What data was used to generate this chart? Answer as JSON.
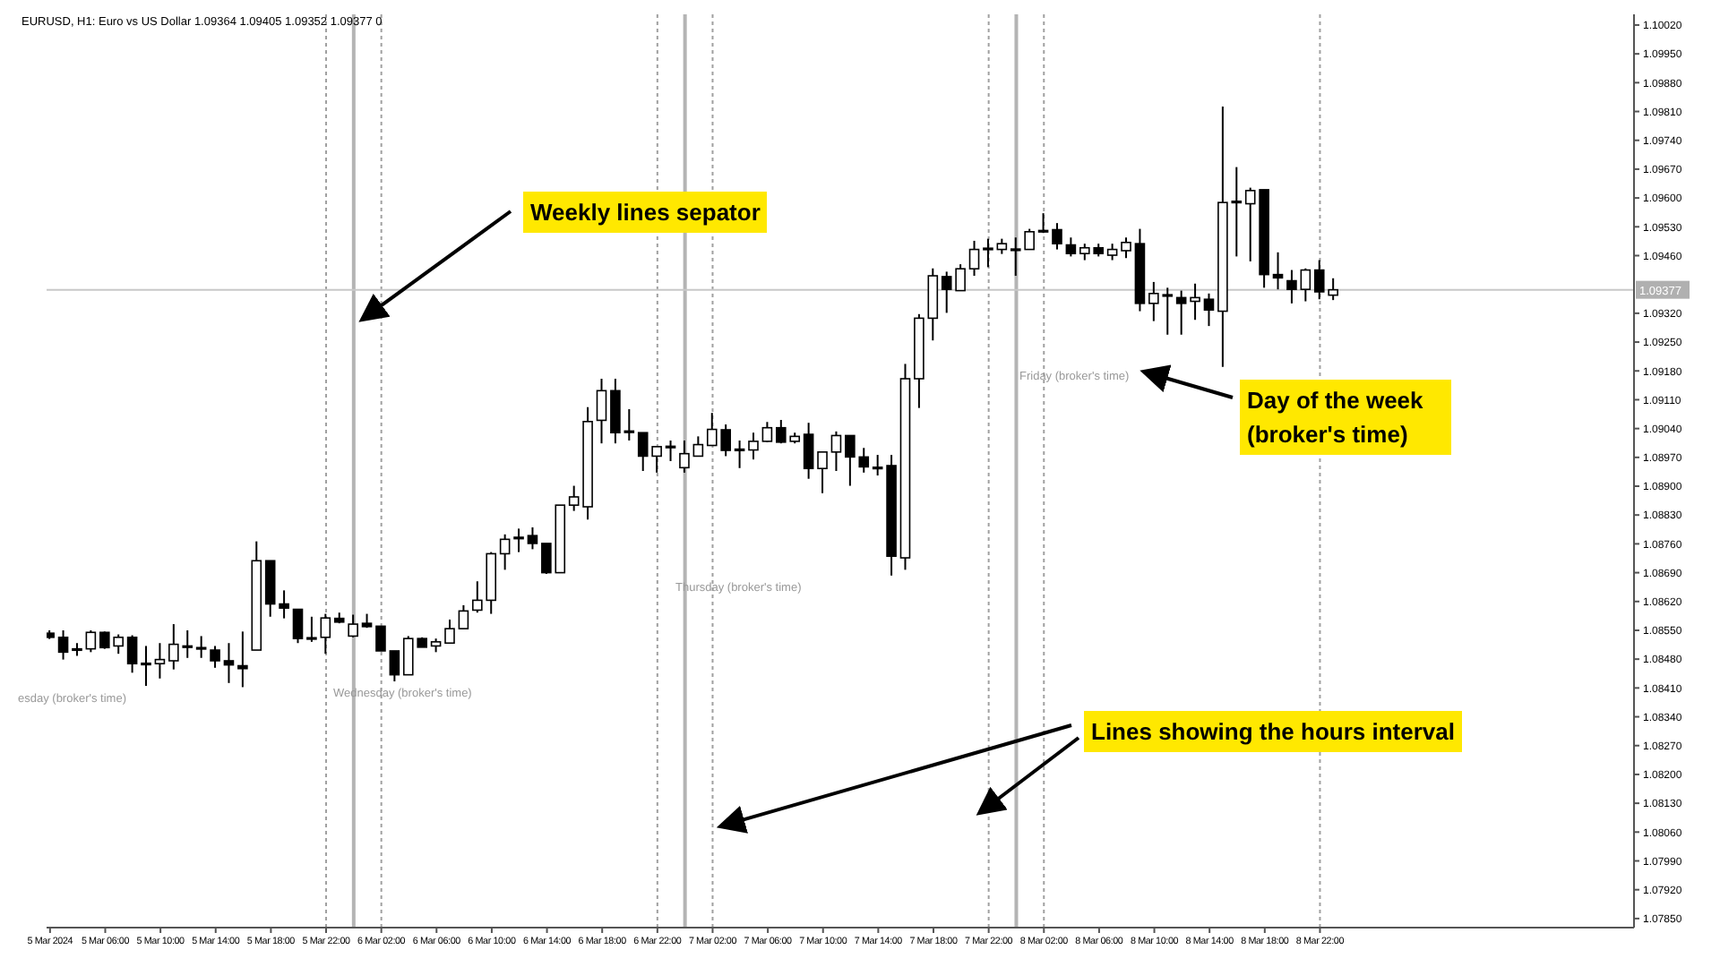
{
  "chart_data": {
    "type": "candlestick",
    "title": "EURUSD, H1: Euro vs US Dollar 1.09364 1.09405 1.09352 1.09377 0",
    "color": "#000000",
    "x": [
      "2024-03-05T02:00",
      "2024-03-05T03:00",
      "2024-03-05T04:00",
      "2024-03-05T05:00",
      "2024-03-05T06:00",
      "2024-03-05T07:00",
      "2024-03-05T08:00",
      "2024-03-05T09:00",
      "2024-03-05T10:00",
      "2024-03-05T11:00",
      "2024-03-05T12:00",
      "2024-03-05T13:00",
      "2024-03-05T14:00",
      "2024-03-05T15:00",
      "2024-03-05T16:00",
      "2024-03-05T17:00",
      "2024-03-05T18:00",
      "2024-03-05T19:00",
      "2024-03-05T20:00",
      "2024-03-05T21:00",
      "2024-03-05T22:00",
      "2024-03-05T23:00",
      "2024-03-06T00:00",
      "2024-03-06T01:00",
      "2024-03-06T02:00",
      "2024-03-06T03:00",
      "2024-03-06T04:00",
      "2024-03-06T05:00",
      "2024-03-06T06:00",
      "2024-03-06T07:00",
      "2024-03-06T08:00",
      "2024-03-06T09:00",
      "2024-03-06T10:00",
      "2024-03-06T11:00",
      "2024-03-06T12:00",
      "2024-03-06T13:00",
      "2024-03-06T14:00",
      "2024-03-06T15:00",
      "2024-03-06T16:00",
      "2024-03-06T17:00",
      "2024-03-06T18:00",
      "2024-03-06T19:00",
      "2024-03-06T20:00",
      "2024-03-06T21:00",
      "2024-03-06T22:00",
      "2024-03-06T23:00",
      "2024-03-07T00:00",
      "2024-03-07T01:00",
      "2024-03-07T02:00",
      "2024-03-07T03:00",
      "2024-03-07T04:00",
      "2024-03-07T05:00",
      "2024-03-07T06:00",
      "2024-03-07T07:00",
      "2024-03-07T08:00",
      "2024-03-07T09:00",
      "2024-03-07T10:00",
      "2024-03-07T11:00",
      "2024-03-07T12:00",
      "2024-03-07T13:00",
      "2024-03-07T14:00",
      "2024-03-07T15:00",
      "2024-03-07T16:00",
      "2024-03-07T17:00",
      "2024-03-07T18:00",
      "2024-03-07T19:00",
      "2024-03-07T20:00",
      "2024-03-07T21:00",
      "2024-03-07T22:00",
      "2024-03-07T23:00",
      "2024-03-08T00:00",
      "2024-03-08T01:00",
      "2024-03-08T02:00",
      "2024-03-08T03:00",
      "2024-03-08T04:00",
      "2024-03-08T05:00",
      "2024-03-08T06:00",
      "2024-03-08T07:00",
      "2024-03-08T08:00",
      "2024-03-08T09:00",
      "2024-03-08T10:00",
      "2024-03-08T11:00",
      "2024-03-08T12:00",
      "2024-03-08T13:00",
      "2024-03-08T14:00",
      "2024-03-08T15:00",
      "2024-03-08T16:00",
      "2024-03-08T17:00",
      "2024-03-08T18:00",
      "2024-03-08T19:00",
      "2024-03-08T20:00",
      "2024-03-08T21:00",
      "2024-03-08T22:00",
      "2024-03-08T23:00"
    ],
    "ohlc": [
      [
        1.08543,
        1.0855,
        1.08529,
        1.08533
      ],
      [
        1.08533,
        1.0855,
        1.08479,
        1.08497
      ],
      [
        1.08502,
        1.08519,
        1.08488,
        1.08505
      ],
      [
        1.08505,
        1.0855,
        1.08497,
        1.08545
      ],
      [
        1.08545,
        1.08547,
        1.08505,
        1.08508
      ],
      [
        1.08512,
        1.0854,
        1.08493,
        1.08533
      ],
      [
        1.08533,
        1.08538,
        1.08447,
        1.08469
      ],
      [
        1.08469,
        1.08512,
        1.08415,
        1.0847
      ],
      [
        1.08469,
        1.08519,
        1.08433,
        1.08479
      ],
      [
        1.08476,
        1.08565,
        1.08455,
        1.08516
      ],
      [
        1.0851,
        1.0855,
        1.08483,
        1.08512
      ],
      [
        1.08508,
        1.08536,
        1.08483,
        1.08505
      ],
      [
        1.08502,
        1.08512,
        1.08459,
        1.08476
      ],
      [
        1.08476,
        1.08519,
        1.08422,
        1.08466
      ],
      [
        1.08464,
        1.08547,
        1.08412,
        1.08457
      ],
      [
        1.08502,
        1.08766,
        1.08502,
        1.08719
      ],
      [
        1.08719,
        1.08719,
        1.08583,
        1.08614
      ],
      [
        1.08614,
        1.08647,
        1.08579,
        1.08604
      ],
      [
        1.08601,
        1.08601,
        1.08519,
        1.0853
      ],
      [
        1.0853,
        1.08583,
        1.08522,
        1.08532
      ],
      [
        1.08533,
        1.0859,
        1.08493,
        1.0858
      ],
      [
        1.08579,
        1.08593,
        1.08567,
        1.0857
      ],
      [
        1.08536,
        1.08588,
        1.08533,
        1.08565
      ],
      [
        1.08567,
        1.0859,
        1.08556,
        1.08559
      ],
      [
        1.0856,
        1.0856,
        1.085,
        1.085
      ],
      [
        1.085,
        1.085,
        1.08426,
        1.08442
      ],
      [
        1.08442,
        1.08536,
        1.08442,
        1.0853
      ],
      [
        1.0853,
        1.08533,
        1.08509,
        1.08509
      ],
      [
        1.08512,
        1.0853,
        1.08497,
        1.08522
      ],
      [
        1.08519,
        1.08576,
        1.08519,
        1.08554
      ],
      [
        1.08554,
        1.08611,
        1.08554,
        1.08597
      ],
      [
        1.08599,
        1.08669,
        1.08593,
        1.08623
      ],
      [
        1.08623,
        1.0874,
        1.0859,
        1.08736
      ],
      [
        1.08736,
        1.08783,
        1.08697,
        1.08771
      ],
      [
        1.08774,
        1.08797,
        1.0874,
        1.08776
      ],
      [
        1.0878,
        1.088,
        1.08747,
        1.08761
      ],
      [
        1.08761,
        1.08761,
        1.08687,
        1.0869
      ],
      [
        1.0869,
        1.08854,
        1.0869,
        1.08854
      ],
      [
        1.08854,
        1.08901,
        1.0884,
        1.08874
      ],
      [
        1.0885,
        1.09092,
        1.08819,
        1.09057
      ],
      [
        1.0906,
        1.09161,
        1.09004,
        1.09132
      ],
      [
        1.09132,
        1.09161,
        1.09004,
        1.0903
      ],
      [
        1.09034,
        1.09087,
        1.09011,
        1.09033
      ],
      [
        1.0903,
        1.0903,
        1.08937,
        1.08973
      ],
      [
        1.08973,
        1.08996,
        1.08933,
        1.08996
      ],
      [
        1.08996,
        1.09011,
        1.08961,
        1.08997
      ],
      [
        1.08945,
        1.09011,
        1.08933,
        1.08979
      ],
      [
        1.08973,
        1.09021,
        1.08973,
        1.09001
      ],
      [
        1.08999,
        1.09078,
        1.08999,
        1.09038
      ],
      [
        1.09037,
        1.0905,
        1.08973,
        1.08987
      ],
      [
        1.08989,
        1.09011,
        1.08944,
        1.0899
      ],
      [
        1.08988,
        1.0903,
        1.08965,
        1.09009
      ],
      [
        1.09009,
        1.09056,
        1.09007,
        1.09042
      ],
      [
        1.09042,
        1.09061,
        1.09004,
        1.09007
      ],
      [
        1.09009,
        1.0903,
        1.09004,
        1.09021
      ],
      [
        1.09026,
        1.09054,
        1.08918,
        1.08943
      ],
      [
        1.08943,
        1.08983,
        1.08883,
        1.08983
      ],
      [
        1.08983,
        1.09033,
        1.08937,
        1.09023
      ],
      [
        1.09023,
        1.09023,
        1.08901,
        1.08971
      ],
      [
        1.08971,
        1.08993,
        1.08933,
        1.08947
      ],
      [
        1.08944,
        1.08976,
        1.08926,
        1.08946
      ],
      [
        1.0895,
        1.08976,
        1.08683,
        1.0873
      ],
      [
        1.08726,
        1.09197,
        1.08697,
        1.09161
      ],
      [
        1.09161,
        1.09318,
        1.0909,
        1.09308
      ],
      [
        1.09308,
        1.09429,
        1.09254,
        1.09411
      ],
      [
        1.09409,
        1.09421,
        1.09321,
        1.09378
      ],
      [
        1.09375,
        1.09439,
        1.09375,
        1.09428
      ],
      [
        1.09428,
        1.09496,
        1.09411,
        1.09475
      ],
      [
        1.09475,
        1.09501,
        1.09432,
        1.09478
      ],
      [
        1.09475,
        1.09501,
        1.09464,
        1.09489
      ],
      [
        1.09476,
        1.09504,
        1.09411,
        1.09475
      ],
      [
        1.09475,
        1.09525,
        1.09475,
        1.09518
      ],
      [
        1.09519,
        1.09563,
        1.09515,
        1.09521
      ],
      [
        1.09523,
        1.09539,
        1.09475,
        1.09489
      ],
      [
        1.09486,
        1.09504,
        1.09458,
        1.09465
      ],
      [
        1.09465,
        1.09489,
        1.09449,
        1.09479
      ],
      [
        1.09479,
        1.09489,
        1.09458,
        1.09465
      ],
      [
        1.09461,
        1.09489,
        1.09449,
        1.09475
      ],
      [
        1.09472,
        1.09504,
        1.09454,
        1.09492
      ],
      [
        1.09489,
        1.09525,
        1.09325,
        1.09344
      ],
      [
        1.09344,
        1.09396,
        1.09301,
        1.09368
      ],
      [
        1.09365,
        1.09382,
        1.09268,
        1.09363
      ],
      [
        1.09358,
        1.09375,
        1.09268,
        1.09344
      ],
      [
        1.09349,
        1.09392,
        1.09304,
        1.09358
      ],
      [
        1.09354,
        1.09368,
        1.09289,
        1.09328
      ],
      [
        1.09325,
        1.09822,
        1.0919,
        1.09589
      ],
      [
        1.09589,
        1.09675,
        1.09458,
        1.09592
      ],
      [
        1.09586,
        1.09625,
        1.09446,
        1.09618
      ],
      [
        1.0962,
        1.0962,
        1.09382,
        1.09414
      ],
      [
        1.09414,
        1.09468,
        1.09378,
        1.09406
      ],
      [
        1.09399,
        1.09425,
        1.09344,
        1.09378
      ],
      [
        1.09378,
        1.09429,
        1.09349,
        1.09425
      ],
      [
        1.09425,
        1.09449,
        1.09354,
        1.09372
      ],
      [
        1.09364,
        1.09405,
        1.09352,
        1.09377
      ]
    ],
    "xlim": [
      "2024-03-05T01:45",
      "2024-03-09T20:45"
    ],
    "xticks": [
      {
        "value": "2024-03-05T02:00",
        "label": "5 Mar 2024"
      },
      {
        "value": "2024-03-05T06:00",
        "label": "5 Mar 06:00"
      },
      {
        "value": "2024-03-05T10:00",
        "label": "5 Mar 10:00"
      },
      {
        "value": "2024-03-05T14:00",
        "label": "5 Mar 14:00"
      },
      {
        "value": "2024-03-05T18:00",
        "label": "5 Mar 18:00"
      },
      {
        "value": "2024-03-05T22:00",
        "label": "5 Mar 22:00"
      },
      {
        "value": "2024-03-06T02:00",
        "label": "6 Mar 02:00"
      },
      {
        "value": "2024-03-06T06:00",
        "label": "6 Mar 06:00"
      },
      {
        "value": "2024-03-06T10:00",
        "label": "6 Mar 10:00"
      },
      {
        "value": "2024-03-06T14:00",
        "label": "6 Mar 14:00"
      },
      {
        "value": "2024-03-06T18:00",
        "label": "6 Mar 18:00"
      },
      {
        "value": "2024-03-06T22:00",
        "label": "6 Mar 22:00"
      },
      {
        "value": "2024-03-07T02:00",
        "label": "7 Mar 02:00"
      },
      {
        "value": "2024-03-07T06:00",
        "label": "7 Mar 06:00"
      },
      {
        "value": "2024-03-07T10:00",
        "label": "7 Mar 10:00"
      },
      {
        "value": "2024-03-07T14:00",
        "label": "7 Mar 14:00"
      },
      {
        "value": "2024-03-07T18:00",
        "label": "7 Mar 18:00"
      },
      {
        "value": "2024-03-07T22:00",
        "label": "7 Mar 22:00"
      },
      {
        "value": "2024-03-08T02:00",
        "label": "8 Mar 02:00"
      },
      {
        "value": "2024-03-08T06:00",
        "label": "8 Mar 06:00"
      },
      {
        "value": "2024-03-08T10:00",
        "label": "8 Mar 10:00"
      },
      {
        "value": "2024-03-08T14:00",
        "label": "8 Mar 14:00"
      },
      {
        "value": "2024-03-08T18:00",
        "label": "8 Mar 18:00"
      },
      {
        "value": "2024-03-08T22:00",
        "label": "8 Mar 22:00"
      }
    ],
    "ylim": [
      1.07828,
      1.10046
    ],
    "yticks": [
      {
        "value": 1.1002,
        "label": "1.10020"
      },
      {
        "value": 1.0995,
        "label": "1.09950"
      },
      {
        "value": 1.0988,
        "label": "1.09880"
      },
      {
        "value": 1.0981,
        "label": "1.09810"
      },
      {
        "value": 1.0974,
        "label": "1.09740"
      },
      {
        "value": 1.0967,
        "label": "1.09670"
      },
      {
        "value": 1.096,
        "label": "1.09600"
      },
      {
        "value": 1.0953,
        "label": "1.09530"
      },
      {
        "value": 1.0946,
        "label": "1.09460"
      },
      {
        "value": 1.0932,
        "label": "1.09320"
      },
      {
        "value": 1.0925,
        "label": "1.09250"
      },
      {
        "value": 1.0918,
        "label": "1.09180"
      },
      {
        "value": 1.0911,
        "label": "1.09110"
      },
      {
        "value": 1.0904,
        "label": "1.09040"
      },
      {
        "value": 1.0897,
        "label": "1.08970"
      },
      {
        "value": 1.089,
        "label": "1.08900"
      },
      {
        "value": 1.0883,
        "label": "1.08830"
      },
      {
        "value": 1.0876,
        "label": "1.08760"
      },
      {
        "value": 1.0869,
        "label": "1.08690"
      },
      {
        "value": 1.0862,
        "label": "1.08620"
      },
      {
        "value": 1.0855,
        "label": "1.08550"
      },
      {
        "value": 1.0848,
        "label": "1.08480"
      },
      {
        "value": 1.0841,
        "label": "1.08410"
      },
      {
        "value": 1.0834,
        "label": "1.08340"
      },
      {
        "value": 1.0827,
        "label": "1.08270"
      },
      {
        "value": 1.082,
        "label": "1.08200"
      },
      {
        "value": 1.0813,
        "label": "1.08130"
      },
      {
        "value": 1.0806,
        "label": "1.08060"
      },
      {
        "value": 1.0799,
        "label": "1.07990"
      },
      {
        "value": 1.0792,
        "label": "1.07920"
      },
      {
        "value": 1.0785,
        "label": "1.07850"
      }
    ],
    "ref_lines": [
      {
        "axis": "x",
        "value": "2024-03-05T22:00",
        "color": "#a0a0a0",
        "line_style": "dotted"
      },
      {
        "axis": "x",
        "value": "2024-03-06T00:00",
        "color": "#b4b4b4",
        "line_style": "solid"
      },
      {
        "axis": "x",
        "value": "2024-03-06T02:00",
        "color": "#a0a0a0",
        "line_style": "dotted"
      },
      {
        "axis": "x",
        "value": "2024-03-06T22:00",
        "color": "#a0a0a0",
        "line_style": "dotted"
      },
      {
        "axis": "x",
        "value": "2024-03-07T00:00",
        "color": "#b4b4b4",
        "line_style": "solid"
      },
      {
        "axis": "x",
        "value": "2024-03-07T02:00",
        "color": "#a0a0a0",
        "line_style": "dotted"
      },
      {
        "axis": "x",
        "value": "2024-03-07T22:00",
        "color": "#a0a0a0",
        "line_style": "dotted"
      },
      {
        "axis": "x",
        "value": "2024-03-08T00:00",
        "color": "#b4b4b4",
        "line_style": "solid"
      },
      {
        "axis": "x",
        "value": "2024-03-08T02:00",
        "color": "#a0a0a0",
        "line_style": "dotted"
      },
      {
        "axis": "x",
        "value": "2024-03-08T22:00",
        "color": "#a0a0a0",
        "line_style": "dotted"
      },
      {
        "axis": "y",
        "value": 1.09377,
        "label": "1.09377",
        "color": "#c8c8c8",
        "line_style": "solid"
      }
    ],
    "annotations": [
      "esday (broker's time)",
      "Wednesday (broker's time)",
      "Thursday (broker's time)",
      "Friday (broker's time)",
      {
        "text": "Weekly lines sepator",
        "x": "2024-03-06T00:00",
        "y": 1.09309
      },
      "Day of the week (broker's time)",
      {
        "text": "Lines showing the hours interval",
        "x": "2024-03-07T02:00",
        "y": 1.08076
      }
    ]
  }
}
